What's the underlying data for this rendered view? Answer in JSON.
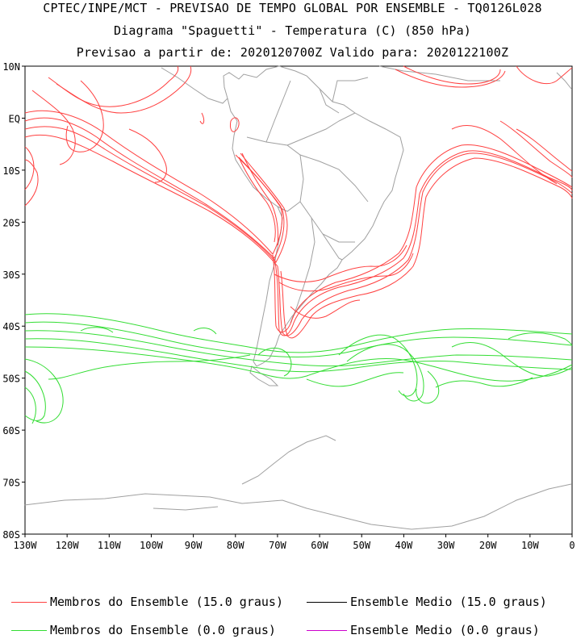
{
  "header": {
    "line1": "CPTEC/INPE/MCT - PREVISAO DE TEMPO GLOBAL POR ENSEMBLE - TQ0126L028",
    "line2": "Diagrama \"Spaguetti\" - Temperatura (C) (850 hPa)",
    "line3": "Previsao a partir de: 2020120700Z  Valido para: 2020122100Z"
  },
  "axes": {
    "lat_labels": [
      "10N",
      "EQ",
      "10S",
      "20S",
      "30S",
      "40S",
      "50S",
      "60S",
      "70S",
      "80S"
    ],
    "lon_labels": [
      "130W",
      "120W",
      "110W",
      "100W",
      "90W",
      "80W",
      "70W",
      "60W",
      "50W",
      "40W",
      "30W",
      "20W",
      "10W",
      "0"
    ]
  },
  "legend": [
    {
      "label": "Membros do Ensemble (15.0 graus)",
      "color": "#ff4040"
    },
    {
      "label": "Ensemble Medio (15.0 graus)",
      "color": "#000000"
    },
    {
      "label": "Membros do Ensemble (0.0 graus)",
      "color": "#33dd33"
    },
    {
      "label": "Ensemble Medio (0.0 graus)",
      "color": "#cc00cc"
    }
  ],
  "colors": {
    "member_15": "#ff4040",
    "member_0": "#33dd33",
    "coast": "#a0a0a0"
  }
}
